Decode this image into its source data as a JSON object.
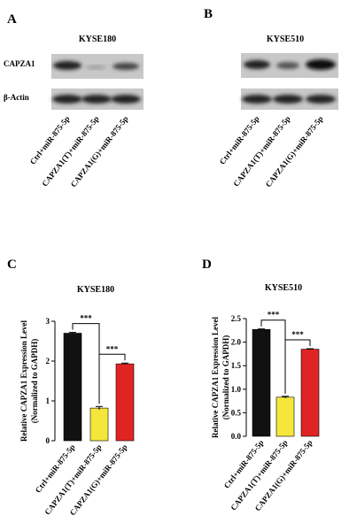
{
  "panels": [
    {
      "letter": "A",
      "title": "KYSE180",
      "rows": [
        "CAPZA1",
        "β-Actin"
      ],
      "lanes": [
        "Ctrl+miR-875-5p",
        "CAPZA1(T)+miR-875-5p",
        "CAPZA1(G)+miR-875-5p"
      ]
    },
    {
      "letter": "B",
      "title": "KYSE510",
      "lanes": [
        "Ctrl+miR-875-5p",
        "CAPZA1(T)+miR-875-5p",
        "CAPZA1(G)+miR-875-5p"
      ]
    }
  ],
  "chart_data": [
    {
      "type": "bar",
      "letter": "C",
      "title": "KYSE180",
      "ylabel": "Relative CAPZA1 Expression Level",
      "ylabel2": "(Normalized to GAPDH)",
      "categories": [
        "Ctrl+miR-875-5p",
        "CAPZA1(T)+miR-875-5p",
        "CAPZA1(G)+miR-875-5p"
      ],
      "values": [
        2.7,
        0.82,
        1.93
      ],
      "errors": [
        0.02,
        0.04,
        0.02
      ],
      "colors": [
        "#111111",
        "#f5e63c",
        "#e02424"
      ],
      "ylim": [
        0,
        3
      ],
      "yticks": [
        0,
        1,
        2,
        3
      ],
      "annotations": [
        "***",
        "***"
      ]
    },
    {
      "type": "bar",
      "letter": "D",
      "title": "KYSE510",
      "ylabel": "Relative CAPZA1 Expression Level",
      "ylabel2": "(Normalized to GAPDH)",
      "categories": [
        "Ctrl+miR-875-5p",
        "CAPZA1(T)+miR-875-5p",
        "CAPZA1(G)+miR-875-5p"
      ],
      "values": [
        2.27,
        0.83,
        1.85
      ],
      "errors": [
        0.01,
        0.02,
        0.01
      ],
      "colors": [
        "#111111",
        "#f5e63c",
        "#e02424"
      ],
      "ylim": [
        0,
        2.5
      ],
      "yticks": [
        {
          "value": 0,
          "label": "0.0"
        },
        0.5,
        {
          "value": 1,
          "label": "1.0"
        },
        1.5,
        {
          "value": 2,
          "label": "2.0"
        },
        2.5
      ],
      "annotations": [
        "***",
        "***"
      ]
    }
  ]
}
